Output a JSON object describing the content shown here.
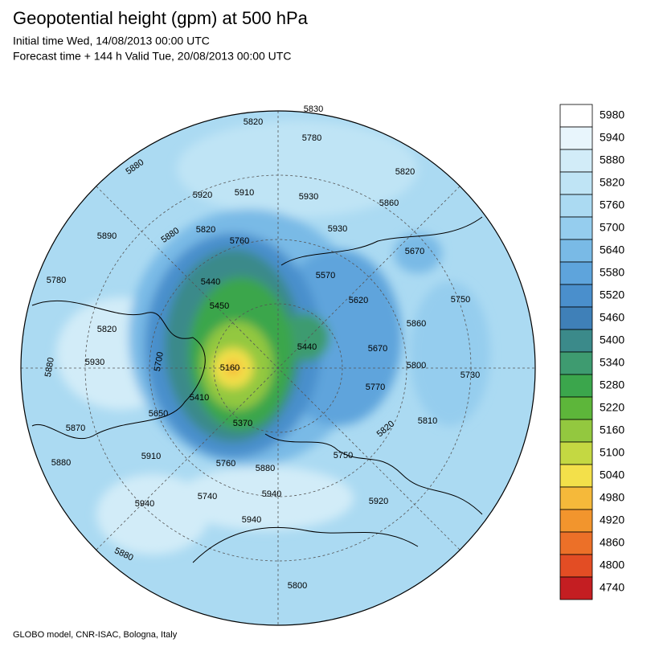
{
  "header": {
    "title": "Geopotential height (gpm) at 500 hPa",
    "initial_time": "Initial time Wed, 14/08/2013 00:00 UTC",
    "forecast_time": "Forecast time + 144 h Valid Tue, 20/08/2013 00:00 UTC"
  },
  "footer": "GLOBO model, CNR-ISAC, Bologna, Italy",
  "colorbar": {
    "levels": [
      5980,
      5940,
      5880,
      5820,
      5760,
      5700,
      5640,
      5580,
      5520,
      5460,
      5400,
      5340,
      5280,
      5220,
      5160,
      5100,
      5040,
      4980,
      4920,
      4860,
      4800,
      4740
    ],
    "colors": [
      "#ffffff",
      "#e8f5fc",
      "#d2ecf8",
      "#bfe4f5",
      "#abdaf2",
      "#95cdee",
      "#79bae6",
      "#5ea4dc",
      "#4a8fcc",
      "#3f80b8",
      "#3b8a8a",
      "#3e9b70",
      "#3ba64c",
      "#5db63a",
      "#93c83f",
      "#c4d842",
      "#f3e04a",
      "#f5b93a",
      "#f2952d",
      "#ec7028",
      "#e34d24",
      "#c41e22"
    ]
  },
  "contour_labels": [
    5830,
    5820,
    5780,
    5880,
    5820,
    5920,
    5910,
    5930,
    5860,
    5930,
    5820,
    5880,
    5760,
    5890,
    5670,
    5570,
    5780,
    5440,
    5620,
    5750,
    5450,
    5820,
    5860,
    5440,
    5670,
    5700,
    5930,
    5880,
    5160,
    5800,
    5730,
    5770,
    5410,
    5650,
    5810,
    5820,
    5370,
    5870,
    5910,
    5750,
    5760,
    5880,
    5880,
    5940,
    5740,
    5920,
    5940,
    5940,
    5880,
    5800
  ]
}
